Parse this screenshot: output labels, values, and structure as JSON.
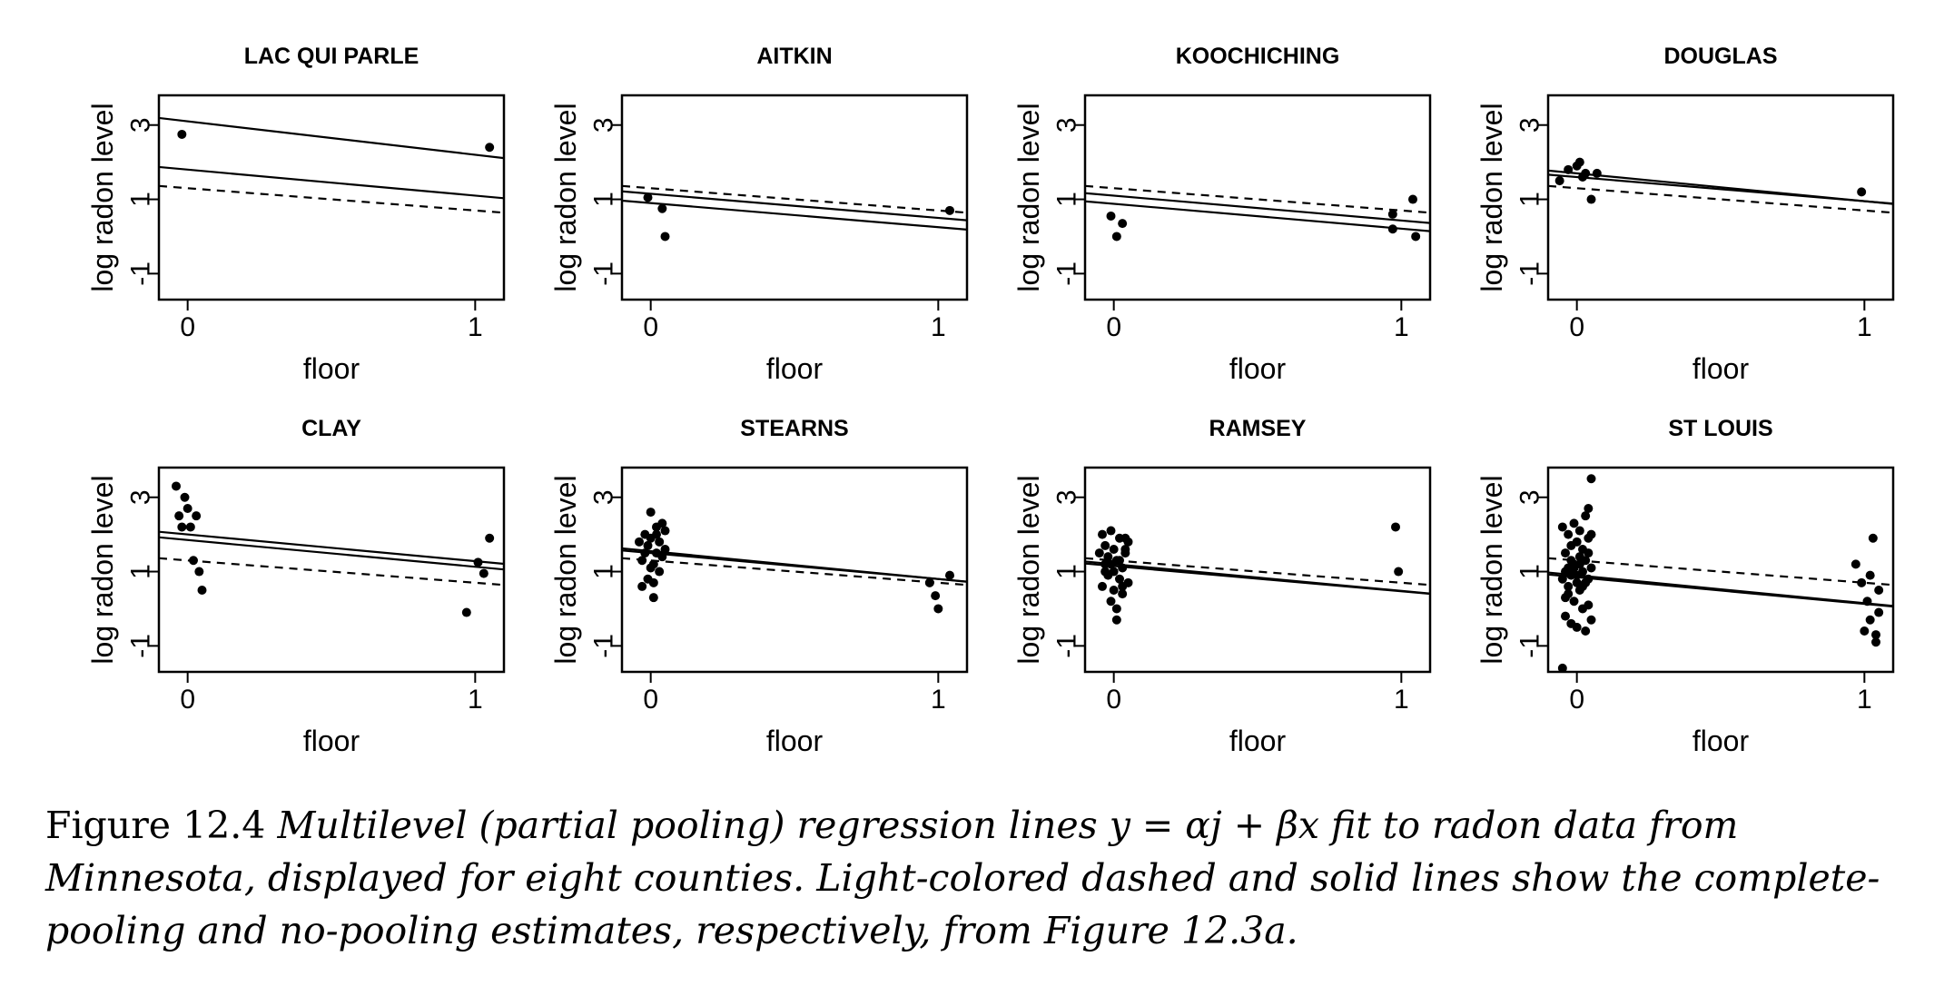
{
  "figure": {
    "caption_lead": "Figure 12.4",
    "caption_body": "Multilevel (partial pooling) regression lines y = αj + βx fit to radon data from Minnesota, displayed for eight counties. Light-colored dashed and solid lines show the complete-pooling and no-pooling estimates, respectively, from Figure 12.3a."
  },
  "chart_data": [
    {
      "type": "scatter",
      "title": "LAC QUI PARLE",
      "xlabel": "floor",
      "ylabel": "log radon level",
      "xticks": [
        "0",
        "1"
      ],
      "yticks": [
        "-1",
        "1",
        "3"
      ],
      "xlim": [
        -0.1,
        1.1
      ],
      "ylim": [
        -1.7,
        3.8
      ],
      "x": [
        -0.02,
        1.05
      ],
      "y": [
        2.75,
        2.4
      ],
      "lines": [
        {
          "style": "solid",
          "intercept": 3.1,
          "slope": -0.9
        },
        {
          "style": "solid",
          "intercept": 1.8,
          "slope": -0.7
        },
        {
          "style": "dashed",
          "intercept": 1.3,
          "slope": -0.6
        }
      ]
    },
    {
      "type": "scatter",
      "title": "AITKIN",
      "xlabel": "floor",
      "ylabel": "log radon level",
      "xticks": [
        "0",
        "1"
      ],
      "yticks": [
        "-1",
        "1",
        "3"
      ],
      "xlim": [
        -0.1,
        1.1
      ],
      "ylim": [
        -1.7,
        3.8
      ],
      "x": [
        -0.01,
        0.04,
        0.05,
        1.04
      ],
      "y": [
        1.05,
        0.75,
        0.0,
        0.7
      ],
      "lines": [
        {
          "style": "solid",
          "intercept": 1.15,
          "slope": -0.65
        },
        {
          "style": "solid",
          "intercept": 0.9,
          "slope": -0.65
        },
        {
          "style": "dashed",
          "intercept": 1.3,
          "slope": -0.6
        }
      ]
    },
    {
      "type": "scatter",
      "title": "KOOCHICHING",
      "xlabel": "floor",
      "ylabel": "log radon level",
      "xticks": [
        "0",
        "1"
      ],
      "yticks": [
        "-1",
        "1",
        "3"
      ],
      "xlim": [
        -0.1,
        1.1
      ],
      "ylim": [
        -1.7,
        3.8
      ],
      "x": [
        -0.01,
        0.01,
        0.03,
        0.97,
        0.97,
        1.04,
        1.05
      ],
      "y": [
        0.55,
        0.0,
        0.35,
        0.6,
        0.2,
        1.0,
        0.0
      ],
      "lines": [
        {
          "style": "solid",
          "intercept": 1.1,
          "slope": -0.67
        },
        {
          "style": "solid",
          "intercept": 0.88,
          "slope": -0.67
        },
        {
          "style": "dashed",
          "intercept": 1.3,
          "slope": -0.6
        }
      ]
    },
    {
      "type": "scatter",
      "title": "DOUGLAS",
      "xlabel": "floor",
      "ylabel": "log radon level",
      "xticks": [
        "0",
        "1"
      ],
      "yticks": [
        "-1",
        "1",
        "3"
      ],
      "xlim": [
        -0.1,
        1.1
      ],
      "ylim": [
        -1.7,
        3.8
      ],
      "x": [
        -0.06,
        -0.03,
        0.0,
        0.01,
        0.02,
        0.03,
        0.05,
        0.07,
        0.99
      ],
      "y": [
        1.5,
        1.8,
        1.9,
        2.0,
        1.6,
        1.7,
        1.0,
        1.7,
        1.2
      ],
      "lines": [
        {
          "style": "solid",
          "intercept": 1.7,
          "slope": -0.75
        },
        {
          "style": "solid",
          "intercept": 1.6,
          "slope": -0.65
        },
        {
          "style": "dashed",
          "intercept": 1.3,
          "slope": -0.6
        }
      ]
    },
    {
      "type": "scatter",
      "title": "CLAY",
      "xlabel": "floor",
      "ylabel": "log radon level",
      "xticks": [
        "0",
        "1"
      ],
      "yticks": [
        "-1",
        "1",
        "3"
      ],
      "xlim": [
        -0.1,
        1.1
      ],
      "ylim": [
        -1.7,
        3.8
      ],
      "x": [
        -0.04,
        -0.03,
        -0.02,
        -0.01,
        0.0,
        0.01,
        0.02,
        0.03,
        0.04,
        0.05,
        0.97,
        1.01,
        1.03,
        1.05
      ],
      "y": [
        3.3,
        2.5,
        2.2,
        3.0,
        2.7,
        2.2,
        1.3,
        2.5,
        1.0,
        0.5,
        -0.1,
        1.25,
        0.95,
        1.9
      ],
      "lines": [
        {
          "style": "solid",
          "intercept": 2.0,
          "slope": -0.72
        },
        {
          "style": "solid",
          "intercept": 1.85,
          "slope": -0.72
        },
        {
          "style": "dashed",
          "intercept": 1.3,
          "slope": -0.6
        }
      ]
    },
    {
      "type": "scatter",
      "title": "STEARNS",
      "xlabel": "floor",
      "ylabel": "log radon level",
      "xticks": [
        "0",
        "1"
      ],
      "yticks": [
        "-1",
        "1",
        "3"
      ],
      "xlim": [
        -0.1,
        1.1
      ],
      "ylim": [
        -1.7,
        3.8
      ],
      "x": [
        -0.04,
        -0.03,
        -0.03,
        -0.02,
        -0.02,
        -0.01,
        -0.01,
        0.0,
        0.0,
        0.01,
        0.01,
        0.02,
        0.02,
        0.03,
        0.03,
        0.04,
        0.04,
        0.05,
        0.05,
        0.0,
        0.01,
        0.02,
        0.97,
        0.99,
        1.0,
        1.04
      ],
      "y": [
        1.8,
        1.3,
        0.6,
        2.0,
        1.5,
        1.7,
        0.8,
        2.6,
        1.9,
        1.2,
        0.3,
        2.2,
        1.5,
        1.0,
        1.8,
        2.3,
        1.4,
        2.1,
        1.6,
        1.1,
        0.7,
        2.0,
        0.7,
        0.35,
        0.0,
        0.9
      ],
      "lines": [
        {
          "style": "solid",
          "intercept": 1.55,
          "slope": -0.75
        },
        {
          "style": "solid",
          "intercept": 1.5,
          "slope": -0.7
        },
        {
          "style": "dashed",
          "intercept": 1.3,
          "slope": -0.6
        }
      ]
    },
    {
      "type": "scatter",
      "title": "RAMSEY",
      "xlabel": "floor",
      "ylabel": "log radon level",
      "xticks": [
        "0",
        "1"
      ],
      "yticks": [
        "-1",
        "1",
        "3"
      ],
      "xlim": [
        -0.1,
        1.1
      ],
      "ylim": [
        -1.7,
        3.8
      ],
      "x": [
        -0.05,
        -0.04,
        -0.04,
        -0.03,
        -0.03,
        -0.02,
        -0.02,
        -0.01,
        -0.01,
        0.0,
        0.0,
        0.01,
        0.01,
        0.02,
        0.02,
        0.03,
        0.03,
        0.04,
        0.04,
        0.05,
        0.05,
        -0.03,
        0.0,
        0.02,
        0.04,
        -0.01,
        0.01,
        0.03,
        0.98,
        0.99
      ],
      "y": [
        1.5,
        2.0,
        0.6,
        1.2,
        1.7,
        0.9,
        1.4,
        2.1,
        0.2,
        1.0,
        1.6,
        1.3,
        -0.3,
        0.8,
        1.9,
        1.1,
        0.4,
        1.5,
        1.9,
        0.7,
        1.8,
        1.0,
        0.5,
        1.3,
        1.6,
        1.2,
        0.0,
        0.6,
        2.2,
        1.0
      ],
      "lines": [
        {
          "style": "solid",
          "intercept": 1.2,
          "slope": -0.72
        },
        {
          "style": "solid",
          "intercept": 1.15,
          "slope": -0.68
        },
        {
          "style": "dashed",
          "intercept": 1.3,
          "slope": -0.6
        }
      ]
    },
    {
      "type": "scatter",
      "title": "ST LOUIS",
      "xlabel": "floor",
      "ylabel": "log radon level",
      "xticks": [
        "0",
        "1"
      ],
      "yticks": [
        "-1",
        "1",
        "3"
      ],
      "xlim": [
        -0.1,
        1.1
      ],
      "ylim": [
        -1.7,
        3.8
      ],
      "x": [
        -0.05,
        -0.05,
        -0.04,
        -0.04,
        -0.04,
        -0.03,
        -0.03,
        -0.03,
        -0.02,
        -0.02,
        -0.02,
        -0.01,
        -0.01,
        -0.01,
        0.0,
        0.0,
        0.0,
        0.01,
        0.01,
        0.01,
        0.02,
        0.02,
        0.02,
        0.03,
        0.03,
        0.03,
        0.04,
        0.04,
        0.04,
        0.05,
        0.05,
        0.05,
        -0.04,
        -0.02,
        0.0,
        0.02,
        0.04,
        -0.03,
        -0.01,
        0.01,
        0.03,
        0.05,
        0.04,
        -0.05,
        0.97,
        0.99,
        1.01,
        1.02,
        1.03,
        1.04,
        1.05,
        1.05,
        1.0,
        1.02,
        1.04
      ],
      "y": [
        2.2,
        0.8,
        1.5,
        0.3,
        -0.2,
        2.0,
        1.1,
        0.6,
        1.7,
        0.9,
        -0.4,
        2.3,
        1.2,
        0.2,
        1.8,
        0.7,
        -0.5,
        1.4,
        0.5,
        2.1,
        1.0,
        0.0,
        1.6,
        2.5,
        1.3,
        -0.6,
        1.9,
        0.8,
        0.1,
        2.0,
        1.1,
        -0.3,
        1.0,
        1.3,
        0.9,
        0.6,
        1.5,
        0.4,
        1.1,
        1.2,
        0.7,
        3.5,
        2.7,
        -1.6,
        1.2,
        0.7,
        0.2,
        -0.3,
        1.9,
        -0.7,
        0.5,
        -0.1,
        -0.6,
        0.9,
        -0.9
      ],
      "lines": [
        {
          "style": "solid",
          "intercept": 0.9,
          "slope": -0.75
        },
        {
          "style": "solid",
          "intercept": 0.85,
          "slope": -0.72
        },
        {
          "style": "dashed",
          "intercept": 1.3,
          "slope": -0.6
        }
      ]
    }
  ]
}
